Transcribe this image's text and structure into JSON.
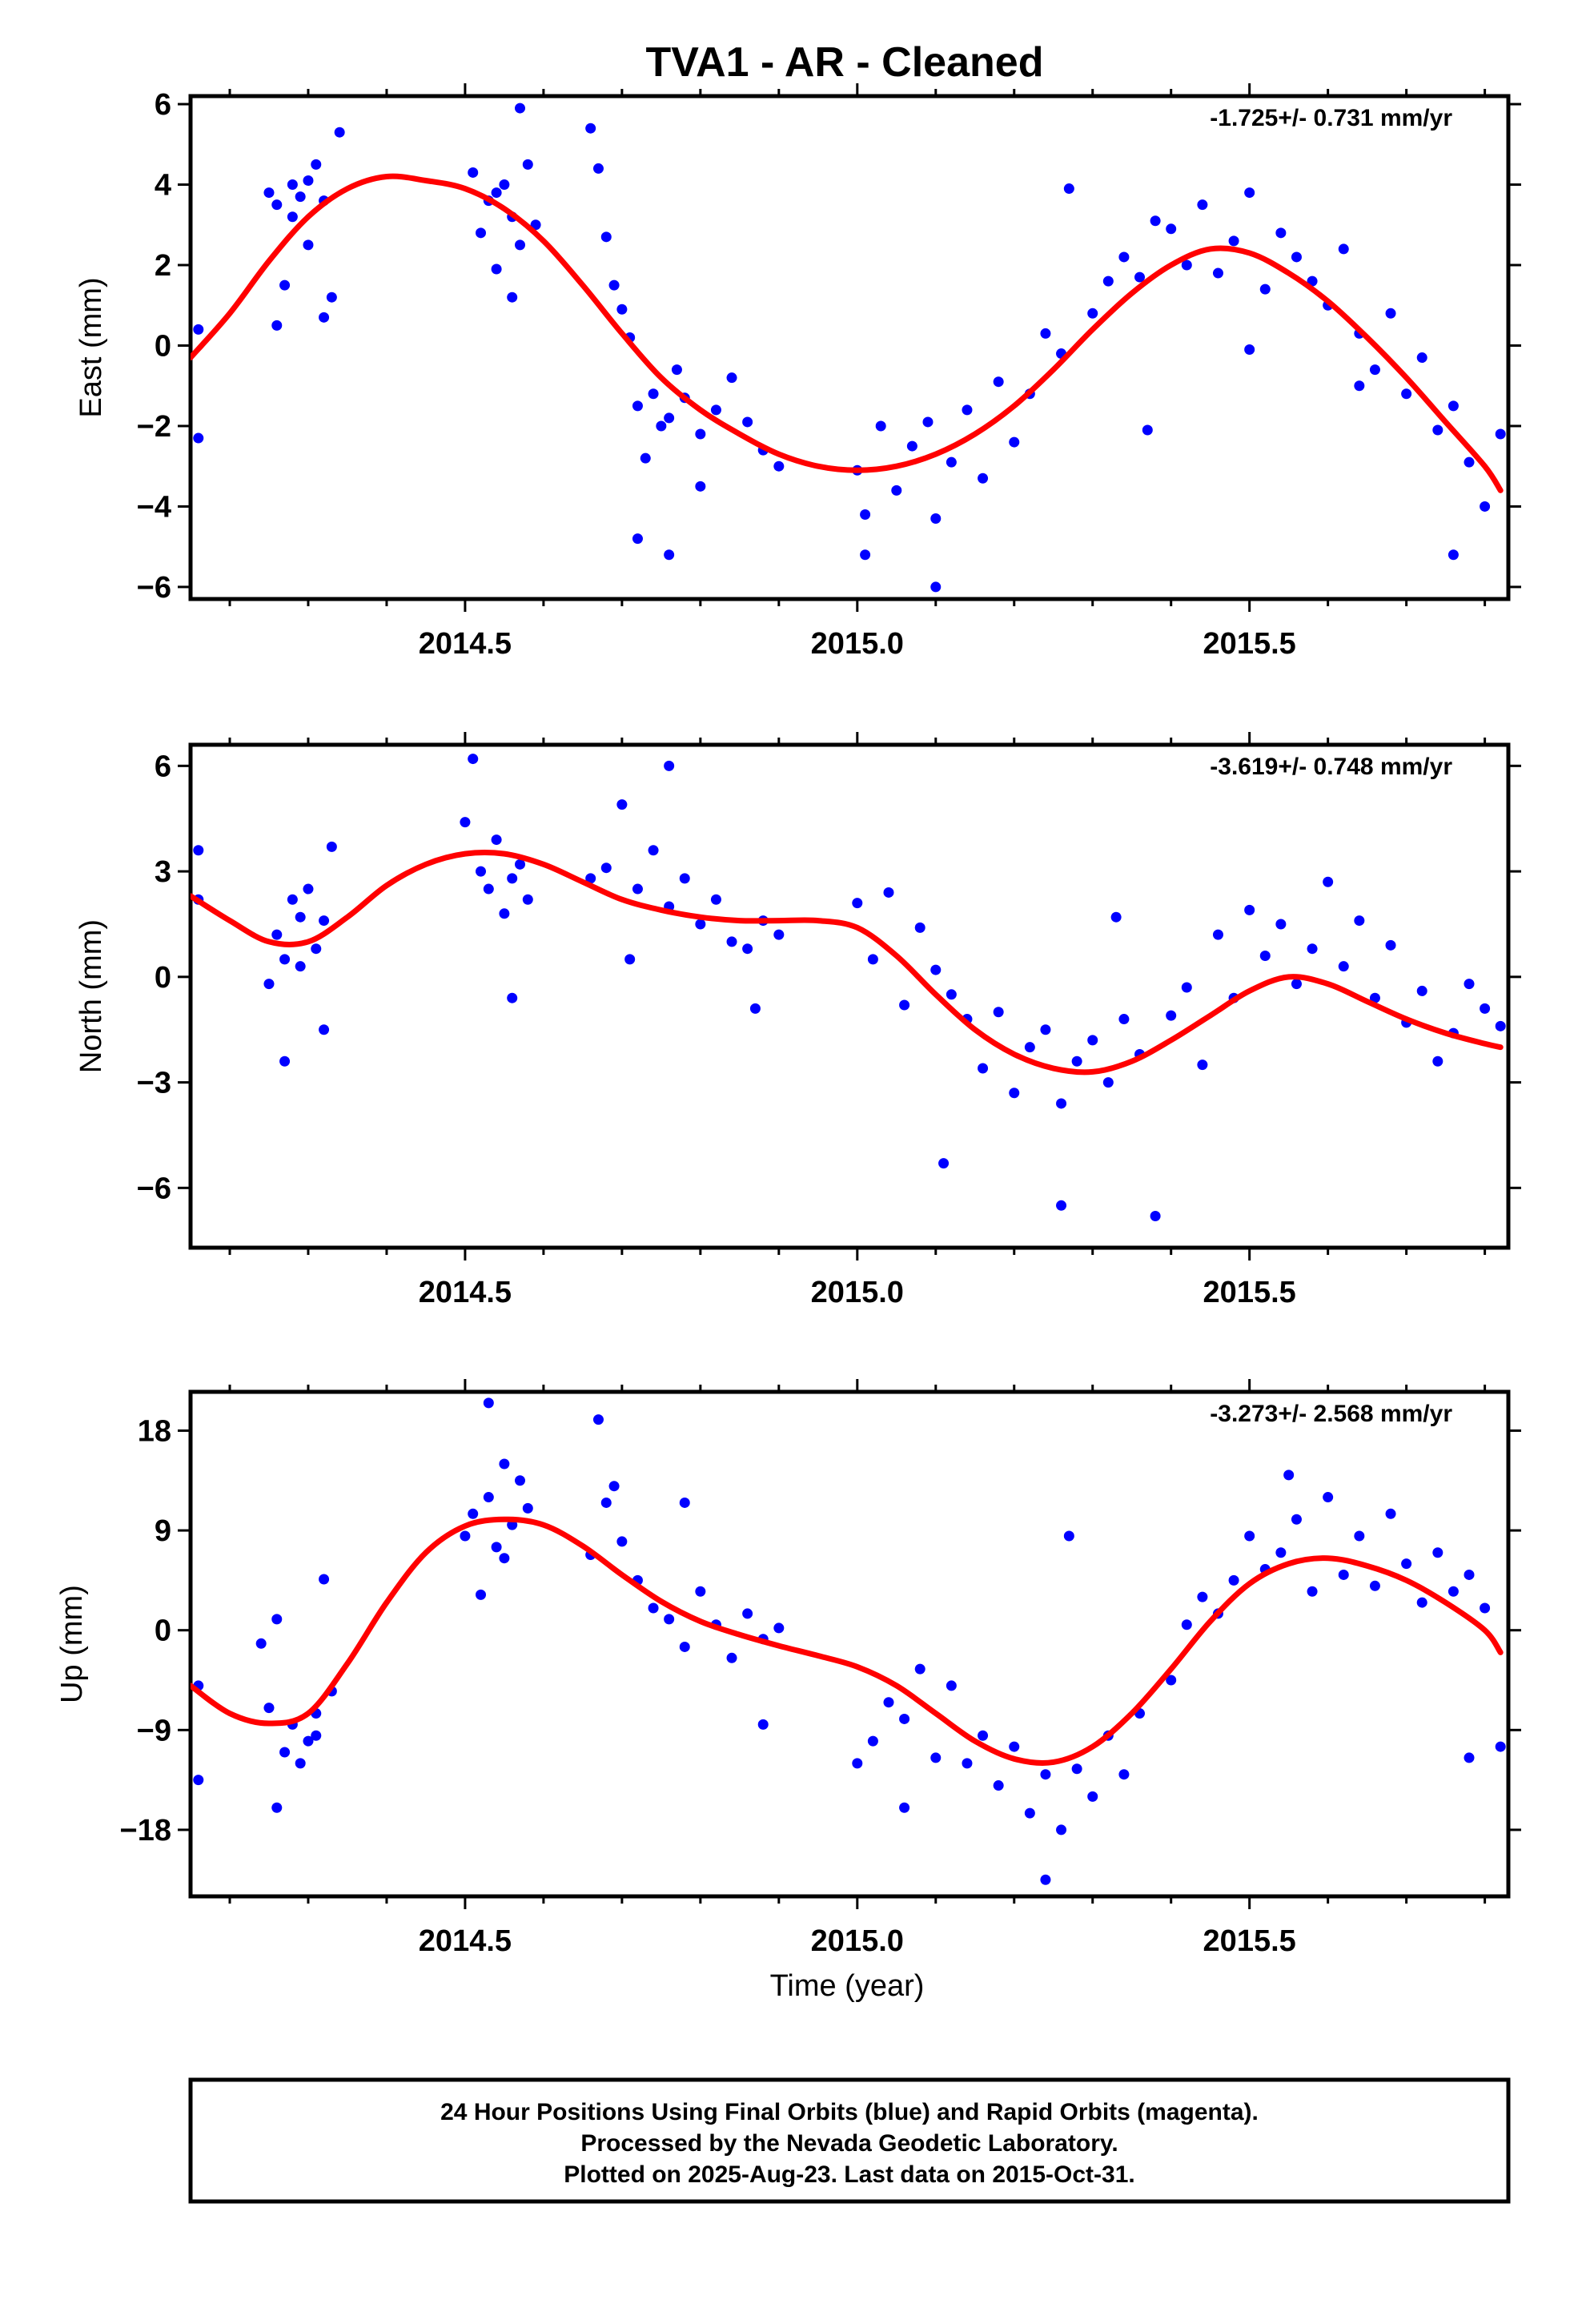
{
  "title": "TVA1  - AR - Cleaned",
  "colors": {
    "data": "#0000ff",
    "fit": "#ff0000",
    "frame": "#000000",
    "background": "#ffffff"
  },
  "xlabel": "Time (year)",
  "footer": {
    "line1": "24 Hour Positions Using Final Orbits (blue) and Rapid Orbits (magenta).",
    "line2": "Processed by the Nevada Geodetic Laboratory.",
    "line3": "Plotted on 2025-Aug-23. Last data on 2015-Oct-31."
  },
  "chart_data": [
    {
      "type": "scatter",
      "component": "East",
      "ylabel": "East (mm)",
      "rate_text": "-1.725+/- 0.731 mm/yr",
      "xlim": [
        2014.15,
        2015.83
      ],
      "ylim": [
        -6.3,
        6.2
      ],
      "xticks": [
        2014.5,
        2015.0,
        2015.5
      ],
      "xtick_labels": [
        "2014.5",
        "2015.0",
        "2015.5"
      ],
      "yticks": [
        -6,
        -4,
        -2,
        0,
        2,
        4,
        6
      ],
      "ytick_labels": [
        "−6",
        "−4",
        "−2",
        "0",
        "2",
        "4",
        "6"
      ],
      "fit_curve": {
        "name": "model",
        "x": [
          2014.15,
          2014.2,
          2014.25,
          2014.3,
          2014.35,
          2014.4,
          2014.45,
          2014.5,
          2014.55,
          2014.6,
          2014.65,
          2014.7,
          2014.75,
          2014.8,
          2014.85,
          2014.9,
          2014.95,
          2015.0,
          2015.05,
          2015.1,
          2015.15,
          2015.2,
          2015.25,
          2015.3,
          2015.35,
          2015.4,
          2015.45,
          2015.5,
          2015.55,
          2015.6,
          2015.65,
          2015.7,
          2015.75,
          2015.8,
          2015.82
        ],
        "y": [
          -0.3,
          0.8,
          2.1,
          3.2,
          3.9,
          4.2,
          4.1,
          3.9,
          3.4,
          2.6,
          1.5,
          0.3,
          -0.8,
          -1.6,
          -2.2,
          -2.7,
          -3.0,
          -3.1,
          -3.0,
          -2.7,
          -2.2,
          -1.5,
          -0.6,
          0.4,
          1.3,
          2.0,
          2.4,
          2.3,
          1.8,
          1.1,
          0.2,
          -0.8,
          -1.9,
          -3.0,
          -3.6
        ]
      },
      "points": {
        "x": [
          2014.16,
          2014.16,
          2014.25,
          2014.26,
          2014.27,
          2014.28,
          2014.29,
          2014.3,
          2014.31,
          2014.32,
          2014.33,
          2014.34,
          2014.26,
          2014.28,
          2014.3,
          2014.32,
          2014.51,
          2014.52,
          2014.53,
          2014.54,
          2014.55,
          2014.56,
          2014.57,
          2014.58,
          2014.59,
          2014.54,
          2014.56,
          2014.57,
          2014.66,
          2014.67,
          2014.68,
          2014.69,
          2014.7,
          2014.71,
          2014.72,
          2014.73,
          2014.74,
          2014.75,
          2014.76,
          2014.77,
          2014.78,
          2014.8,
          2014.82,
          2014.84,
          2014.86,
          2014.88,
          2014.9,
          2014.72,
          2014.76,
          2014.8,
          2015.0,
          2015.01,
          2015.03,
          2015.05,
          2015.07,
          2015.09,
          2015.1,
          2015.12,
          2015.14,
          2015.16,
          2015.18,
          2015.2,
          2015.22,
          2015.24,
          2015.26,
          2015.01,
          2015.1,
          2015.27,
          2015.3,
          2015.32,
          2015.34,
          2015.36,
          2015.38,
          2015.4,
          2015.42,
          2015.44,
          2015.46,
          2015.48,
          2015.5,
          2015.52,
          2015.54,
          2015.56,
          2015.58,
          2015.6,
          2015.62,
          2015.64,
          2015.66,
          2015.68,
          2015.7,
          2015.72,
          2015.74,
          2015.76,
          2015.78,
          2015.8,
          2015.82,
          2015.37,
          2015.5,
          2015.64,
          2015.76
        ],
        "y": [
          0.4,
          -2.3,
          3.8,
          3.5,
          1.5,
          4.0,
          3.7,
          2.5,
          4.5,
          3.6,
          1.2,
          5.3,
          0.5,
          3.2,
          4.1,
          0.7,
          4.3,
          2.8,
          3.6,
          1.9,
          4.0,
          3.2,
          2.5,
          4.5,
          3.0,
          3.8,
          1.2,
          5.9,
          5.4,
          4.4,
          2.7,
          1.5,
          0.9,
          0.2,
          -1.5,
          -2.8,
          -1.2,
          -2.0,
          -1.8,
          -0.6,
          -1.3,
          -2.2,
          -1.6,
          -0.8,
          -1.9,
          -2.6,
          -3.0,
          -4.8,
          -5.2,
          -3.5,
          -3.1,
          -4.2,
          -2.0,
          -3.6,
          -2.5,
          -1.9,
          -4.3,
          -2.9,
          -1.6,
          -3.3,
          -0.9,
          -2.4,
          -1.2,
          0.3,
          -0.2,
          -5.2,
          -6.0,
          3.9,
          0.8,
          1.6,
          2.2,
          1.7,
          3.1,
          2.9,
          2.0,
          3.5,
          1.8,
          2.6,
          3.8,
          1.4,
          2.8,
          2.2,
          1.6,
          1.0,
          2.4,
          0.3,
          -0.6,
          0.8,
          -1.2,
          -0.3,
          -2.1,
          -1.5,
          -2.9,
          -4.0,
          -2.2,
          -2.1,
          -0.1,
          -1.0,
          -5.2
        ]
      }
    },
    {
      "type": "scatter",
      "component": "North",
      "ylabel": "North (mm)",
      "rate_text": "-3.619+/- 0.748 mm/yr",
      "xlim": [
        2014.15,
        2015.83
      ],
      "ylim": [
        -7.7,
        6.6
      ],
      "xticks": [
        2014.5,
        2015.0,
        2015.5
      ],
      "xtick_labels": [
        "2014.5",
        "2015.0",
        "2015.5"
      ],
      "yticks": [
        -6,
        -3,
        0,
        3,
        6
      ],
      "ytick_labels": [
        "−6",
        "−3",
        "0",
        "3",
        "6"
      ],
      "fit_curve": {
        "name": "model",
        "x": [
          2014.15,
          2014.2,
          2014.25,
          2014.3,
          2014.35,
          2014.4,
          2014.45,
          2014.5,
          2014.55,
          2014.6,
          2014.65,
          2014.7,
          2014.75,
          2014.8,
          2014.85,
          2014.9,
          2014.95,
          2015.0,
          2015.05,
          2015.1,
          2015.15,
          2015.2,
          2015.25,
          2015.3,
          2015.35,
          2015.4,
          2015.45,
          2015.5,
          2015.55,
          2015.6,
          2015.65,
          2015.7,
          2015.75,
          2015.8,
          2015.82
        ],
        "y": [
          2.3,
          1.6,
          1.0,
          1.0,
          1.7,
          2.6,
          3.2,
          3.5,
          3.5,
          3.2,
          2.7,
          2.2,
          1.9,
          1.7,
          1.6,
          1.6,
          1.6,
          1.4,
          0.6,
          -0.5,
          -1.5,
          -2.2,
          -2.6,
          -2.7,
          -2.4,
          -1.8,
          -1.1,
          -0.4,
          0.0,
          -0.2,
          -0.7,
          -1.2,
          -1.6,
          -1.9,
          -2.0
        ]
      },
      "points": {
        "x": [
          2014.16,
          2014.16,
          2014.25,
          2014.26,
          2014.27,
          2014.28,
          2014.29,
          2014.3,
          2014.31,
          2014.32,
          2014.33,
          2014.27,
          2014.29,
          2014.32,
          2014.5,
          2014.51,
          2014.52,
          2014.53,
          2014.54,
          2014.55,
          2014.56,
          2014.57,
          2014.58,
          2014.56,
          2014.66,
          2014.68,
          2014.7,
          2014.72,
          2014.74,
          2014.76,
          2014.78,
          2014.8,
          2014.82,
          2014.84,
          2014.86,
          2014.88,
          2014.9,
          2014.71,
          2014.76,
          2014.87,
          2015.0,
          2015.02,
          2015.04,
          2015.06,
          2015.08,
          2015.1,
          2015.12,
          2015.14,
          2015.16,
          2015.18,
          2015.2,
          2015.22,
          2015.24,
          2015.26,
          2015.28,
          2015.3,
          2015.32,
          2015.34,
          2015.36,
          2015.26,
          2015.11,
          2015.33,
          2015.38,
          2015.4,
          2015.42,
          2015.44,
          2015.46,
          2015.48,
          2015.5,
          2015.52,
          2015.54,
          2015.56,
          2015.58,
          2015.6,
          2015.62,
          2015.64,
          2015.66,
          2015.68,
          2015.7,
          2015.72,
          2015.74,
          2015.76,
          2015.78,
          2015.8,
          2015.82
        ],
        "y": [
          3.6,
          2.2,
          -0.2,
          1.2,
          0.5,
          2.2,
          1.7,
          2.5,
          0.8,
          1.6,
          3.7,
          -2.4,
          0.3,
          -1.5,
          4.4,
          6.2,
          3.0,
          2.5,
          3.9,
          1.8,
          2.8,
          3.2,
          2.2,
          -0.6,
          2.8,
          3.1,
          4.9,
          2.5,
          3.6,
          2.0,
          2.8,
          1.5,
          2.2,
          1.0,
          0.8,
          1.6,
          1.2,
          0.5,
          6.0,
          -0.9,
          2.1,
          0.5,
          2.4,
          -0.8,
          1.4,
          0.2,
          -0.5,
          -1.2,
          -2.6,
          -1.0,
          -3.3,
          -2.0,
          -1.5,
          -3.6,
          -2.4,
          -1.8,
          -3.0,
          -1.2,
          -2.2,
          -6.5,
          -5.3,
          1.7,
          -6.8,
          -1.1,
          -0.3,
          -2.5,
          1.2,
          -0.6,
          1.9,
          0.6,
          1.5,
          -0.2,
          0.8,
          2.7,
          0.3,
          1.6,
          -0.6,
          0.9,
          -1.3,
          -0.4,
          -2.4,
          -1.6,
          -0.2,
          -0.9,
          -1.4
        ]
      }
    },
    {
      "type": "scatter",
      "component": "Up",
      "ylabel": "Up (mm)",
      "rate_text": "-3.273+/- 2.568 mm/yr",
      "xlim": [
        2014.15,
        2015.83
      ],
      "ylim": [
        -24,
        21.5
      ],
      "xticks": [
        2014.5,
        2015.0,
        2015.5
      ],
      "xtick_labels": [
        "2014.5",
        "2015.0",
        "2015.5"
      ],
      "yticks": [
        -18,
        -9,
        0,
        9,
        18
      ],
      "ytick_labels": [
        "−18",
        "−9",
        "0",
        "9",
        "18"
      ],
      "fit_curve": {
        "name": "model",
        "x": [
          2014.15,
          2014.2,
          2014.25,
          2014.3,
          2014.35,
          2014.4,
          2014.45,
          2014.5,
          2014.55,
          2014.6,
          2014.65,
          2014.7,
          2014.75,
          2014.8,
          2014.85,
          2014.9,
          2014.95,
          2015.0,
          2015.05,
          2015.1,
          2015.15,
          2015.2,
          2015.25,
          2015.3,
          2015.35,
          2015.4,
          2015.45,
          2015.5,
          2015.55,
          2015.6,
          2015.65,
          2015.7,
          2015.75,
          2015.8,
          2015.82
        ],
        "y": [
          -5.0,
          -7.5,
          -8.4,
          -7.5,
          -3.0,
          2.5,
          7.0,
          9.4,
          10.0,
          9.5,
          7.6,
          5.0,
          2.6,
          0.8,
          -0.4,
          -1.4,
          -2.3,
          -3.3,
          -5.0,
          -7.5,
          -10.0,
          -11.6,
          -11.9,
          -10.5,
          -7.5,
          -3.5,
          0.8,
          4.2,
          6.0,
          6.5,
          5.8,
          4.5,
          2.5,
          0.0,
          -2.0
        ]
      },
      "points": {
        "x": [
          2014.16,
          2014.16,
          2014.24,
          2014.25,
          2014.26,
          2014.27,
          2014.28,
          2014.29,
          2014.3,
          2014.31,
          2014.32,
          2014.33,
          2014.26,
          2014.31,
          2014.5,
          2014.51,
          2014.52,
          2014.53,
          2014.54,
          2014.55,
          2014.56,
          2014.57,
          2014.58,
          2014.53,
          2014.55,
          2014.66,
          2014.67,
          2014.68,
          2014.7,
          2014.72,
          2014.74,
          2014.76,
          2014.78,
          2014.8,
          2014.82,
          2014.84,
          2014.86,
          2014.88,
          2014.9,
          2014.69,
          2014.78,
          2014.88,
          2015.0,
          2015.02,
          2015.04,
          2015.06,
          2015.08,
          2015.1,
          2015.12,
          2015.14,
          2015.16,
          2015.18,
          2015.2,
          2015.22,
          2015.24,
          2015.26,
          2015.28,
          2015.3,
          2015.32,
          2015.34,
          2015.36,
          2015.24,
          2015.27,
          2015.06,
          2015.4,
          2015.42,
          2015.44,
          2015.46,
          2015.48,
          2015.5,
          2015.52,
          2015.54,
          2015.56,
          2015.58,
          2015.6,
          2015.62,
          2015.64,
          2015.66,
          2015.68,
          2015.7,
          2015.72,
          2015.74,
          2015.76,
          2015.78,
          2015.8,
          2015.82,
          2015.55,
          2015.78
        ],
        "y": [
          -5.0,
          -13.5,
          -1.2,
          -7.0,
          1.0,
          -11.0,
          -8.5,
          -12.0,
          -10.0,
          -7.5,
          4.6,
          -5.5,
          -16.0,
          -9.5,
          8.5,
          10.5,
          3.2,
          12.0,
          7.5,
          15.0,
          9.5,
          13.5,
          11.0,
          20.5,
          6.5,
          6.8,
          19.0,
          11.5,
          8.0,
          4.5,
          2.0,
          1.0,
          -1.5,
          3.5,
          0.5,
          -2.5,
          1.5,
          -0.8,
          0.2,
          13.0,
          11.5,
          -8.5,
          -12.0,
          -10.0,
          -6.5,
          -8.0,
          -3.5,
          -11.5,
          -5.0,
          -12.0,
          -9.5,
          -14.0,
          -10.5,
          -16.5,
          -13.0,
          -18.0,
          -12.5,
          -15.0,
          -9.5,
          -13.0,
          -7.5,
          -22.5,
          8.5,
          -16.0,
          -4.5,
          0.5,
          3.0,
          1.5,
          4.5,
          8.5,
          5.5,
          7.0,
          10.0,
          3.5,
          12.0,
          5.0,
          8.5,
          4.0,
          10.5,
          6.0,
          2.5,
          7.0,
          3.5,
          5.0,
          2.0,
          -10.5,
          14.0,
          -11.5
        ]
      }
    }
  ]
}
